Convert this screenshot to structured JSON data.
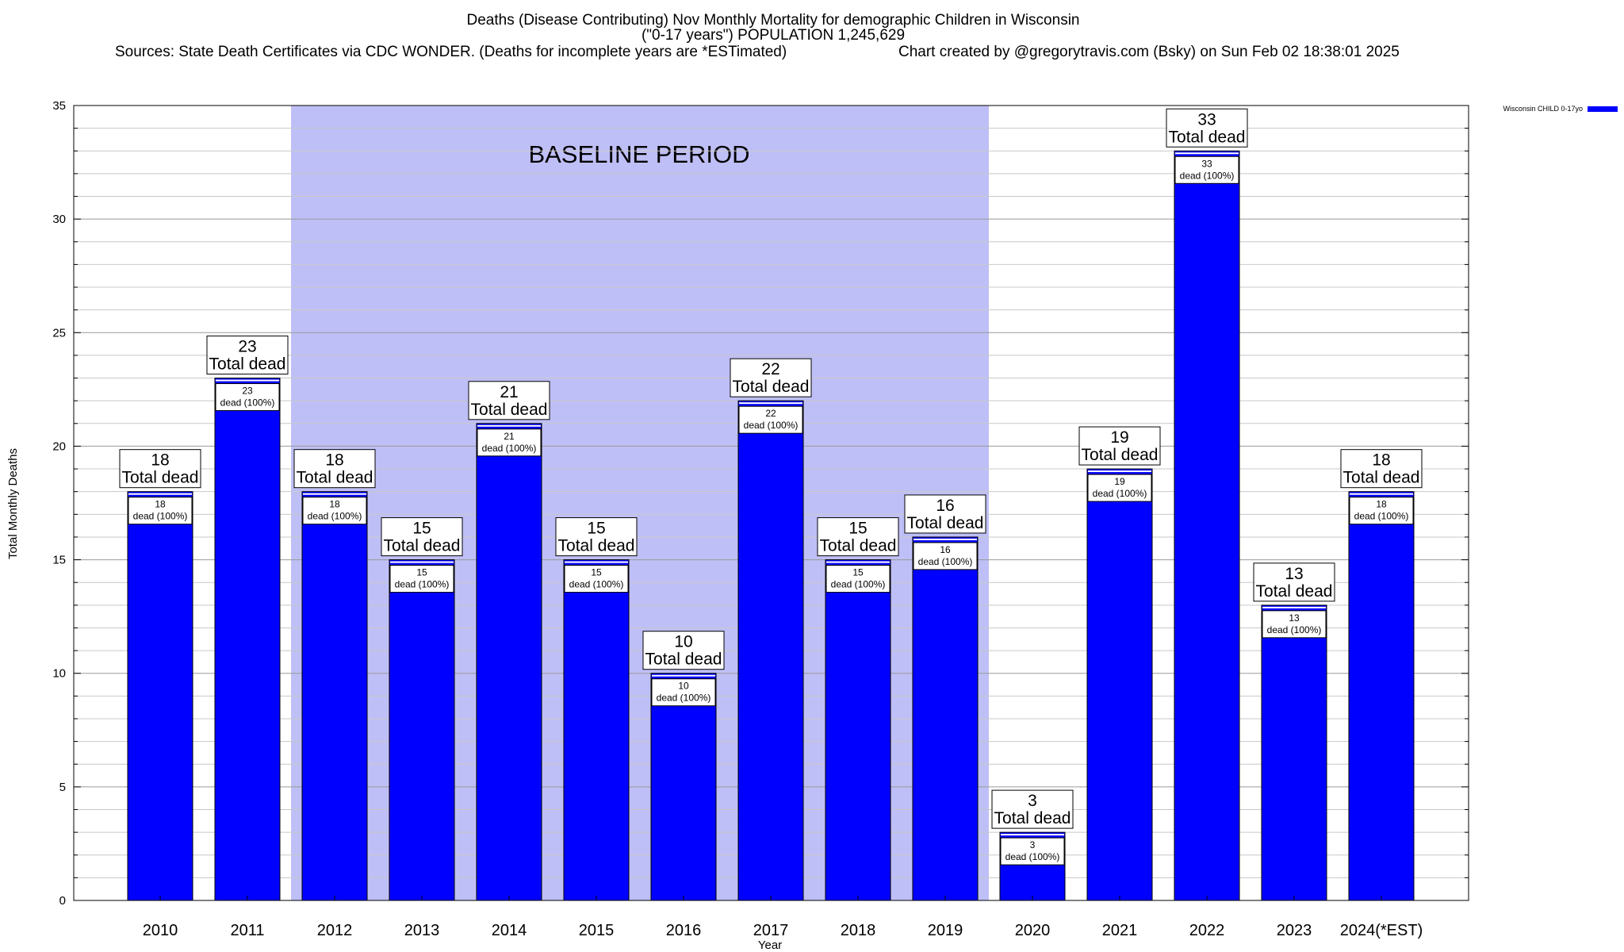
{
  "chart_data": {
    "type": "bar",
    "title": "Deaths (Disease Contributing) Nov Monthly Mortality for demographic Children in Wisconsin",
    "subtitle": "(\"0-17 years\") POPULATION 1,245,629",
    "sources": "Sources: State Death Certificates via CDC WONDER. (Deaths for incomplete years are *ESTimated)",
    "credit": "Chart created by @gregorytravis.com (Bsky) on Sun Feb 02 18:38:01 2025",
    "xlabel": "Year",
    "ylabel": "Total Monthly Deaths",
    "ylim": [
      0,
      35
    ],
    "y_major_ticks": [
      0,
      5,
      10,
      15,
      20,
      25,
      30,
      35
    ],
    "y_minor_step": 1,
    "grid": true,
    "legend_position": "top-right",
    "categories": [
      "2010",
      "2011",
      "2012",
      "2013",
      "2014",
      "2015",
      "2016",
      "2017",
      "2018",
      "2019",
      "2020",
      "2021",
      "2022",
      "2023",
      "2024(*EST)"
    ],
    "series": [
      {
        "name": "Wisconsin CHILD 0-17yo",
        "color": "#0000ff",
        "values": [
          18,
          23,
          18,
          15,
          21,
          15,
          10,
          22,
          15,
          16,
          3,
          19,
          33,
          13,
          18
        ]
      }
    ],
    "total_label": "Total dead",
    "inner_label": "dead (100%)",
    "baseline": {
      "label": "BASELINE PERIOD",
      "start": "2012",
      "end": "2019",
      "color": "#bfbff7"
    }
  }
}
